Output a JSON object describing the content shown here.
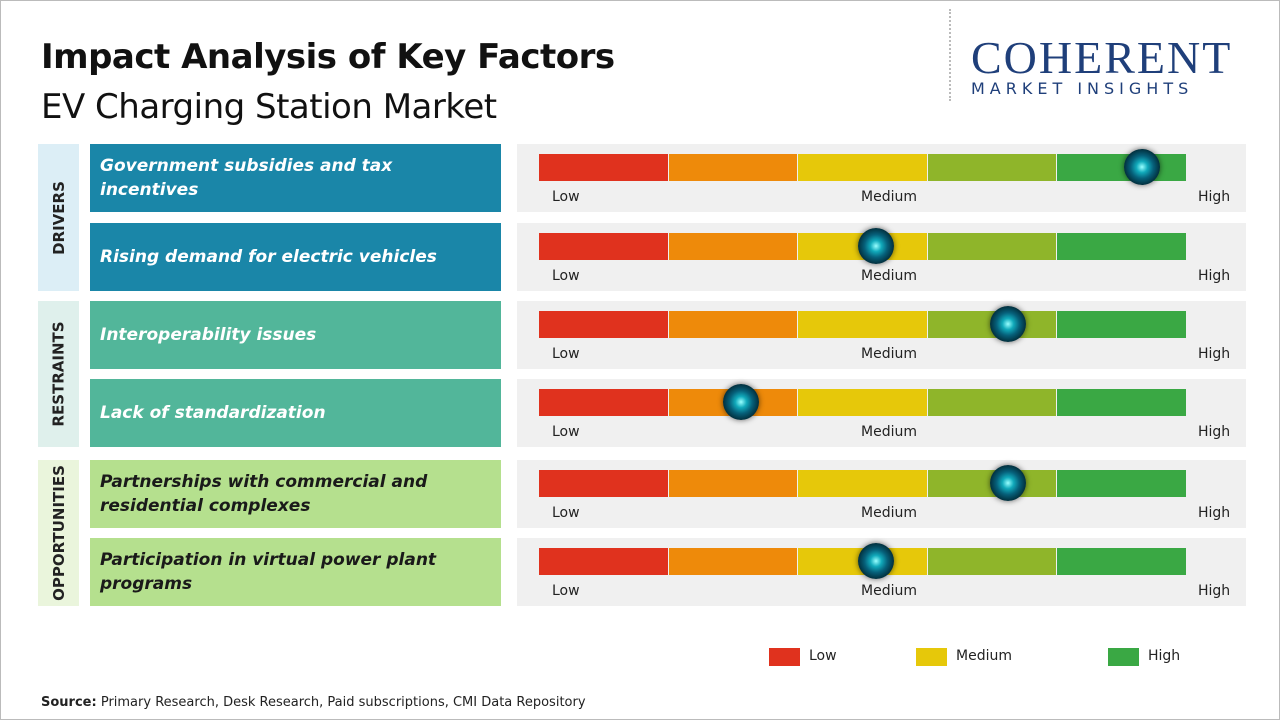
{
  "header": {
    "title": "Impact Analysis of Key Factors",
    "subtitle": "EV Charging Station Market"
  },
  "logo": {
    "name": "COHERENT",
    "tagline": "MARKET INSIGHTS"
  },
  "scale": {
    "min": 0,
    "max": 5,
    "low": "Low",
    "medium": "Medium",
    "high": "High",
    "colors": [
      "#e0321e",
      "#ee8a0a",
      "#e6c80a",
      "#8fb52a",
      "#3aa844"
    ]
  },
  "groups": [
    {
      "name": "DRIVERS",
      "color": "#1a86a8",
      "tint": "#dceef6",
      "text_color": "#ffffff",
      "factors": [
        {
          "label": "Government subsidies and tax incentives",
          "impact": 4.65
        },
        {
          "label": "Rising demand for electric vehicles",
          "impact": 2.6
        }
      ]
    },
    {
      "name": "RESTRAINTS",
      "color": "#52b69a",
      "tint": "#dff0ec",
      "text_color": "#ffffff",
      "factors": [
        {
          "label": "Interoperability issues",
          "impact": 3.62
        },
        {
          "label": "Lack of standardization",
          "impact": 1.56
        }
      ]
    },
    {
      "name": "OPPORTUNITIES",
      "color": "#b5e08e",
      "tint": "#eaf5dc",
      "text_color": "#1a1a1a",
      "factors": [
        {
          "label": "Partnerships with commercial and residential complexes",
          "impact": 3.62
        },
        {
          "label": "Participation in virtual power plant programs",
          "impact": 2.6
        }
      ]
    }
  ],
  "legend": [
    {
      "label": "Low",
      "color": "#e0321e"
    },
    {
      "label": "Medium",
      "color": "#e6c80a"
    },
    {
      "label": "High",
      "color": "#3aa844"
    }
  ],
  "source": {
    "label": "Source:",
    "text": "Primary Research, Desk Research, Paid subscriptions, CMI Data Repository"
  }
}
